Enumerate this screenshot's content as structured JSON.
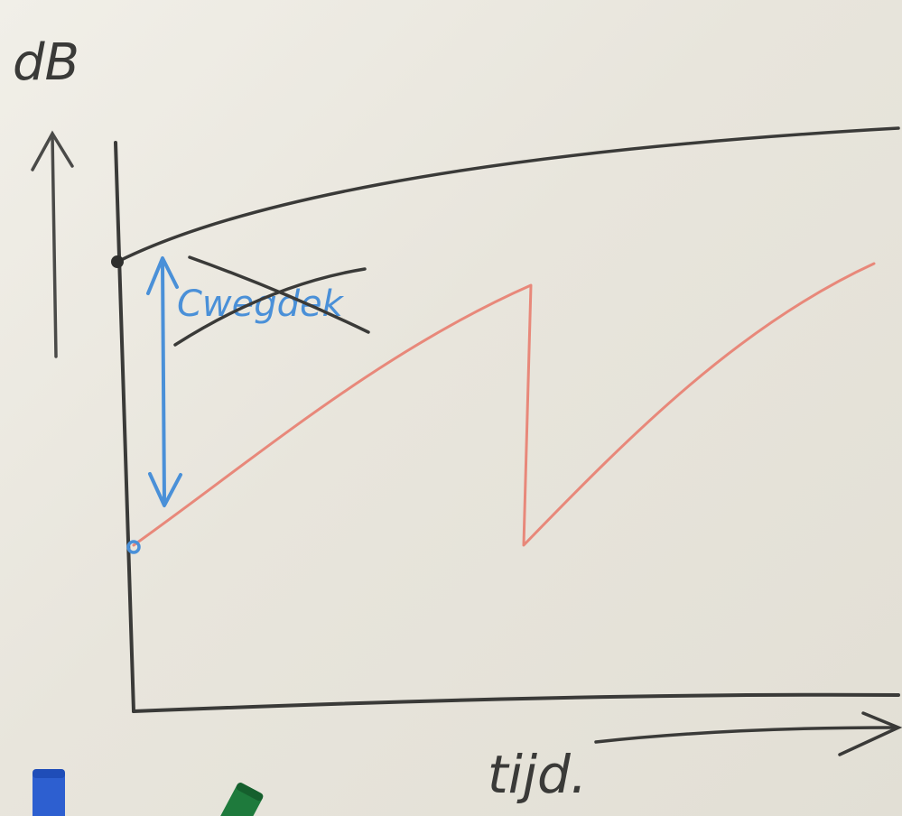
{
  "labels": {
    "y_unit": "dB",
    "x_axis": "tijd.",
    "annotation": "Cwegdek"
  },
  "colors": {
    "marker_black": "#3a3a38",
    "marker_red": "#e8887a",
    "marker_blue": "#4a90d8",
    "board": "#ece9e1"
  }
}
